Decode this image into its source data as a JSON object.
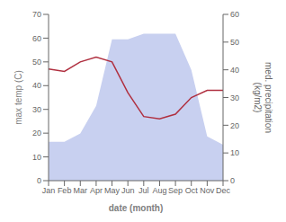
{
  "chart_data": {
    "type": "line",
    "categories": [
      "Jan",
      "Feb",
      "Mar",
      "Apr",
      "May",
      "Jun",
      "Jul",
      "Aug",
      "Sep",
      "Oct",
      "Nov",
      "Dec"
    ],
    "series": [
      {
        "type": "area",
        "color": "#c8d0f0",
        "axis": "y2",
        "values": [
          14,
          14,
          17,
          27,
          51,
          51,
          53,
          53,
          53,
          40,
          16,
          13
        ]
      },
      {
        "type": "line",
        "color": "#b03040",
        "values": [
          47,
          46,
          50,
          52,
          50,
          37,
          27,
          26,
          28,
          35,
          38,
          38
        ]
      }
    ],
    "xlabel": "date (month)",
    "ylabel": "max temp (C)",
    "y2label": "med. precipitation\n(kg/m2)",
    "ylim": [
      0,
      70
    ],
    "yticks": [
      0,
      10,
      20,
      30,
      40,
      50,
      60,
      70
    ],
    "y2lim": [
      0,
      60
    ],
    "y2ticks": [
      0,
      10,
      20,
      30,
      40,
      50,
      60
    ],
    "grid": false
  }
}
